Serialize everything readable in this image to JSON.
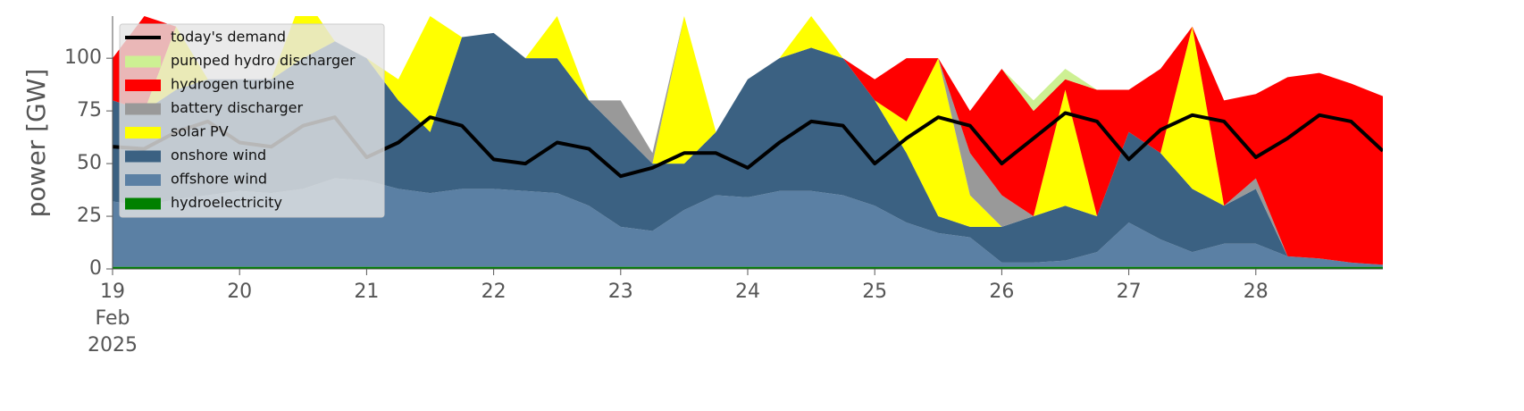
{
  "chart_data": {
    "type": "area",
    "ylabel": "power [GW]",
    "x": [
      19,
      19.25,
      19.5,
      19.75,
      20,
      20.25,
      20.5,
      20.75,
      21,
      21.25,
      21.5,
      21.75,
      22,
      22.25,
      22.5,
      22.75,
      23,
      23.25,
      23.5,
      23.75,
      24,
      24.25,
      24.5,
      24.75,
      25,
      25.25,
      25.5,
      25.75,
      26,
      26.25,
      26.5,
      26.75,
      27,
      27.25,
      27.5,
      27.75,
      28,
      28.25,
      28.5,
      28.75,
      29
    ],
    "xlim": [
      19,
      29
    ],
    "xticks": [
      {
        "value": 19,
        "label": "19\nFeb\n2025"
      },
      20,
      21,
      22,
      23,
      24,
      25,
      26,
      27,
      28
    ],
    "ylim": [
      0,
      120
    ],
    "yticks": [
      0,
      25,
      50,
      75,
      100
    ],
    "legend": "upper left",
    "series": [
      {
        "name": "today's demand",
        "type": "line",
        "color": "#000000",
        "values": [
          58,
          57,
          65,
          70,
          60,
          58,
          68,
          72,
          53,
          60,
          72,
          68,
          52,
          50,
          60,
          57,
          44,
          48,
          55,
          55,
          48,
          60,
          70,
          68,
          50,
          62,
          72,
          68,
          50,
          62,
          74,
          70,
          52,
          66,
          73,
          70,
          53,
          62,
          73,
          70,
          56
        ]
      },
      {
        "name": "pumped hydro discharger",
        "type": "area",
        "color": "#cdf093",
        "values": [
          0,
          0,
          0,
          0,
          0,
          0,
          0,
          0,
          0,
          0,
          0,
          0,
          0,
          0,
          0,
          0,
          0,
          0,
          0,
          0,
          0,
          0,
          0,
          0,
          0,
          0,
          0,
          0,
          0,
          5,
          5,
          0,
          0,
          0,
          0,
          0,
          0,
          0,
          0,
          0,
          0
        ]
      },
      {
        "name": "hydrogen turbine",
        "type": "area",
        "color": "#ff0000",
        "values": [
          20,
          45,
          0,
          0,
          0,
          0,
          0,
          0,
          0,
          0,
          0,
          0,
          0,
          0,
          0,
          0,
          0,
          0,
          0,
          0,
          0,
          0,
          0,
          0,
          10,
          30,
          0,
          20,
          60,
          50,
          5,
          60,
          20,
          40,
          0,
          50,
          40,
          85,
          88,
          85,
          80
        ]
      },
      {
        "name": "battery discharger",
        "type": "area",
        "color": "#999999",
        "values": [
          0,
          0,
          0,
          0,
          0,
          0,
          0,
          0,
          0,
          0,
          0,
          0,
          0,
          0,
          0,
          0,
          15,
          5,
          0,
          0,
          0,
          0,
          0,
          0,
          0,
          0,
          0,
          20,
          15,
          0,
          0,
          0,
          0,
          0,
          0,
          0,
          5,
          0,
          0,
          0,
          0
        ]
      },
      {
        "name": "solar PV",
        "type": "area",
        "color": "#ffff00",
        "values": [
          0,
          0,
          30,
          0,
          0,
          0,
          30,
          0,
          0,
          10,
          55,
          0,
          0,
          0,
          20,
          0,
          0,
          0,
          70,
          0,
          0,
          0,
          15,
          0,
          0,
          15,
          75,
          15,
          0,
          0,
          55,
          0,
          0,
          0,
          77,
          0,
          0,
          0,
          0,
          0,
          0
        ]
      },
      {
        "name": "onshore wind",
        "type": "area",
        "color": "#3b6182",
        "values": [
          48,
          45,
          52,
          55,
          53,
          54,
          62,
          65,
          58,
          42,
          29,
          72,
          74,
          63,
          64,
          50,
          45,
          32,
          22,
          30,
          56,
          63,
          68,
          65,
          50,
          33,
          8,
          5,
          17,
          22,
          26,
          17,
          43,
          41,
          30,
          18,
          26,
          0,
          0,
          0,
          0
        ]
      },
      {
        "name": "offshore wind",
        "type": "area",
        "color": "#5b80a4",
        "values": [
          31,
          29,
          32,
          34,
          36,
          35,
          37,
          42,
          41,
          37,
          35,
          37,
          37,
          36,
          35,
          29,
          19,
          17,
          27,
          34,
          33,
          36,
          36,
          34,
          29,
          21,
          16,
          14,
          2,
          2,
          3,
          7,
          21,
          13,
          7,
          11,
          11,
          5,
          4,
          2,
          1
        ]
      },
      {
        "name": "hydroelectricity",
        "type": "area",
        "color": "#008000",
        "values": [
          1,
          1,
          1,
          1,
          1,
          1,
          1,
          1,
          1,
          1,
          1,
          1,
          1,
          1,
          1,
          1,
          1,
          1,
          1,
          1,
          1,
          1,
          1,
          1,
          1,
          1,
          1,
          1,
          1,
          1,
          1,
          1,
          1,
          1,
          1,
          1,
          1,
          1,
          1,
          1,
          1
        ]
      }
    ]
  }
}
